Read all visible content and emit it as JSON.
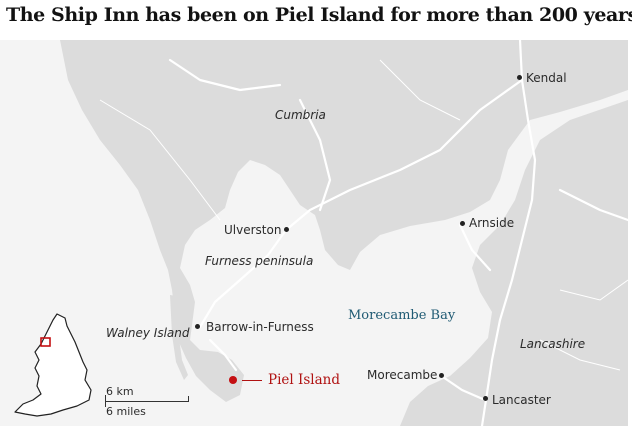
{
  "title": "The Ship Inn has been on Piel Island for more than 200 years",
  "labels": {
    "kendal": "Kendal",
    "cumbria": "Cumbria",
    "arnside": "Arnside",
    "ulverston": "Ulverston",
    "furness": "Furness peninsula",
    "walney": "Walney Island",
    "barrow": "Barrow-in-Furness",
    "bay": "Morecambe Bay",
    "lancashire": "Lancashire",
    "morecambe": "Morecambe",
    "lancaster": "Lancaster",
    "piel": "Piel Island"
  },
  "scale": {
    "km": "6 km",
    "miles": "6 miles"
  },
  "colors": {
    "land": "#dcdcdc",
    "sea": "#f4f4f4",
    "roads": "#ffffff",
    "highlight": "#c40f12",
    "bay_label": "#1f5a73"
  }
}
